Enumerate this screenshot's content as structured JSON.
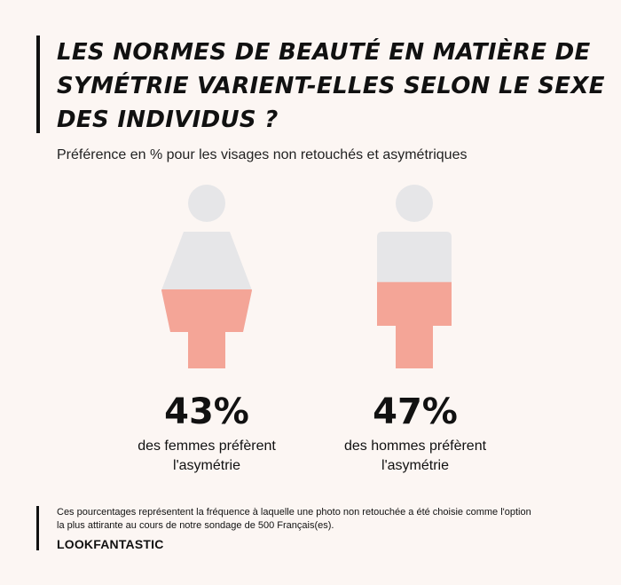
{
  "header": {
    "title": "LES NORMES DE BEAUTÉ EN MATIÈRE DE SYMÉTRIE VARIENT-ELLES SELON LE SEXE DES INDIVIDUS ?",
    "subtitle": "Préférence en % pour les visages non retouchés et asymétriques"
  },
  "colors": {
    "background": "#fcf6f3",
    "base_figure": "#e6e6e8",
    "fill_figure": "#f4a597",
    "text": "#111111"
  },
  "chart_data": {
    "type": "pictogram",
    "title": "LES NORMES DE BEAUTÉ EN MATIÈRE DE SYMÉTRIE VARIENT-ELLES SELON LE SEXE DES INDIVIDUS ?",
    "subtitle": "Préférence en % pour les visages non retouchés et asymétriques",
    "unit": "%",
    "categories": [
      "femmes",
      "hommes"
    ],
    "values": [
      43,
      47
    ],
    "series": [
      {
        "icon": "female-figure-icon",
        "value": 43,
        "value_label": "43%",
        "description": "des femmes préfèrent l'asymétrie",
        "desc_line1": "des femmes préfèrent",
        "desc_line2": "l'asymétrie"
      },
      {
        "icon": "male-figure-icon",
        "value": 47,
        "value_label": "47%",
        "description": "des hommes préfèrent l'asymétrie",
        "desc_line1": "des hommes préfèrent",
        "desc_line2": "l'asymétrie"
      }
    ],
    "ylim": [
      0,
      100
    ]
  },
  "footer": {
    "note_line1": "Ces pourcentages représentent la fréquence à laquelle une photo non retouchée a été choisie comme l'option",
    "note_line2": "la plus attirante au cours de notre sondage de 500 Français(es).",
    "brand": "LOOKFANTASTIC"
  }
}
